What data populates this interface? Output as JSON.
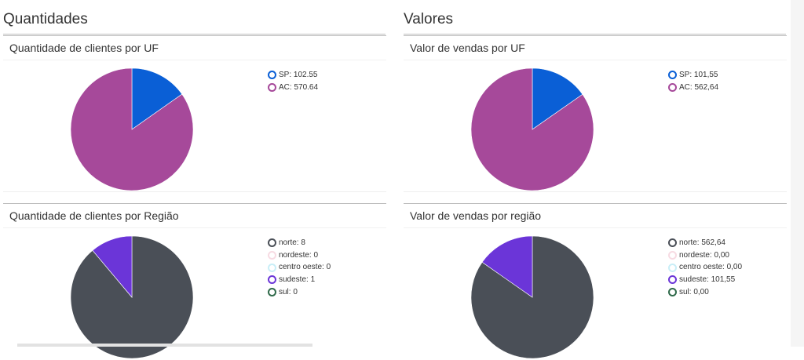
{
  "sections": {
    "left_title": "Quantidades",
    "right_title": "Valores"
  },
  "chart_data": [
    {
      "type": "pie",
      "title": "Quantidade de clientes por UF",
      "labels": [
        "SP",
        "AC"
      ],
      "values": [
        102.55,
        570.64
      ],
      "legend_text": [
        "SP: 102.55",
        "AC: 570.64"
      ],
      "colors": [
        "#0a5fd6",
        "#a6499a"
      ],
      "legend_position": "top-right"
    },
    {
      "type": "pie",
      "title": "Valor de vendas por UF",
      "labels": [
        "SP",
        "AC"
      ],
      "values": [
        101.55,
        562.64
      ],
      "legend_text": [
        "SP: 101,55",
        "AC: 562,64"
      ],
      "colors": [
        "#0a5fd6",
        "#a6499a"
      ],
      "legend_position": "top-right"
    },
    {
      "type": "pie",
      "title": "Quantidade de clientes por Região",
      "labels": [
        "norte",
        "nordeste",
        "centro oeste",
        "sudeste",
        "sul"
      ],
      "values": [
        8,
        0,
        0,
        1,
        0
      ],
      "legend_text": [
        "norte: 8",
        "nordeste: 0",
        "centro oeste: 0",
        "sudeste: 1",
        "sul: 0"
      ],
      "colors": [
        "#4a4f57",
        "#f7dbe3",
        "#c9eef7",
        "#6b35d8",
        "#2f6a4a"
      ],
      "legend_position": "top-right"
    },
    {
      "type": "pie",
      "title": "Valor de vendas por região",
      "labels": [
        "norte",
        "nordeste",
        "centro oeste",
        "sudeste",
        "sul"
      ],
      "values": [
        562.64,
        0,
        0,
        101.55,
        0
      ],
      "legend_text": [
        "norte: 562,64",
        "nordeste: 0,00",
        "centro oeste: 0,00",
        "sudeste: 101,55",
        "sul: 0,00"
      ],
      "colors": [
        "#4a4f57",
        "#f7dbe3",
        "#c9eef7",
        "#6b35d8",
        "#2f6a4a"
      ],
      "legend_position": "top-right"
    }
  ]
}
